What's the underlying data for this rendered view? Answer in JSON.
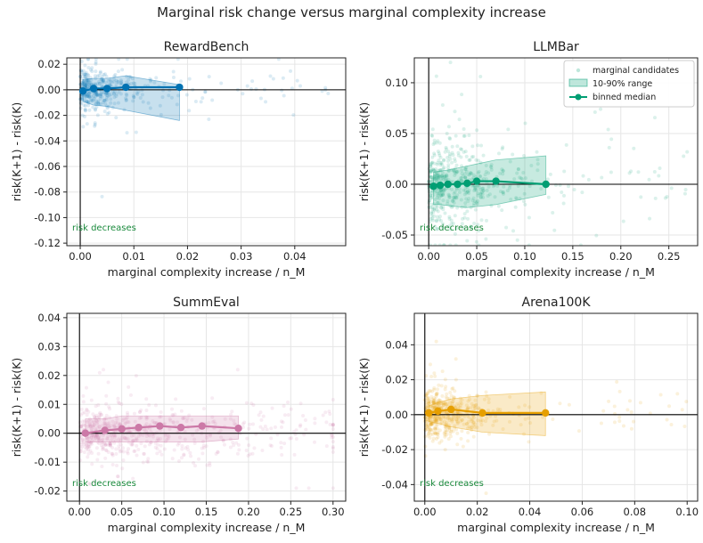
{
  "figure_title": "Marginal risk change versus marginal complexity increase",
  "chart_data": [
    {
      "type": "scatter",
      "title": "RewardBench",
      "xlabel": "marginal complexity increase / n_M",
      "ylabel": "risk(K+1) - risk(K)",
      "xlim": [
        -0.0025,
        0.0495
      ],
      "ylim": [
        -0.122,
        0.025
      ],
      "xticks": [
        0.0,
        0.01,
        0.02,
        0.03,
        0.04
      ],
      "xtick_labels": [
        "0.00",
        "0.01",
        "0.02",
        "0.03",
        "0.04"
      ],
      "yticks": [
        -0.12,
        -0.1,
        -0.08,
        -0.06,
        -0.04,
        -0.02,
        0.0,
        0.02
      ],
      "ytick_labels": [
        "-0.12",
        "-0.10",
        "-0.08",
        "-0.06",
        "-0.04",
        "-0.02",
        "0.00",
        "0.02"
      ],
      "color": "#0072B2",
      "annotation": "risk decreases",
      "grid": true,
      "scatter": {
        "x_range": [
          0.0,
          0.047
        ],
        "x_concentration": 0.004,
        "y_scale": 0.007,
        "y_clip": [
          -0.118,
          0.024
        ],
        "count": 420,
        "seed": 11
      },
      "band": {
        "x": [
          0.0005,
          0.0025,
          0.005,
          0.0085,
          0.0185
        ],
        "y_low": [
          -0.009,
          -0.012,
          -0.013,
          -0.016,
          -0.024
        ],
        "y_high": [
          0.008,
          0.009,
          0.009,
          0.011,
          0.004
        ]
      },
      "median": {
        "x": [
          0.0005,
          0.0025,
          0.005,
          0.0085,
          0.0185
        ],
        "y": [
          -0.001,
          0.001,
          0.001,
          0.002,
          0.002
        ]
      }
    },
    {
      "type": "scatter",
      "title": "LLMBar",
      "xlabel": "marginal complexity increase / n_M",
      "ylabel": "risk(K+1) - risk(K)",
      "xlim": [
        -0.015,
        0.28
      ],
      "ylim": [
        -0.0605,
        0.1245
      ],
      "xticks": [
        0.0,
        0.05,
        0.1,
        0.15,
        0.2,
        0.25
      ],
      "xtick_labels": [
        "0.00",
        "0.05",
        "0.10",
        "0.15",
        "0.20",
        "0.25"
      ],
      "yticks": [
        -0.05,
        0.0,
        0.05,
        0.1
      ],
      "ytick_labels": [
        "-0.05",
        "0.00",
        "0.05",
        "0.10"
      ],
      "color": "#009E73",
      "annotation": "risk decreases",
      "grid": true,
      "legend": {
        "position": "top-right",
        "entries": [
          "marginal candidates",
          "10-90% range",
          "binned median"
        ]
      },
      "scatter": {
        "x_range": [
          0.0,
          0.27
        ],
        "x_concentration": 0.035,
        "y_scale": 0.017,
        "y_clip": [
          -0.06,
          0.12
        ],
        "count": 560,
        "seed": 23
      },
      "band": {
        "x": [
          0.005,
          0.012,
          0.02,
          0.03,
          0.04,
          0.05,
          0.07,
          0.122
        ],
        "y_low": [
          -0.02,
          -0.02,
          -0.021,
          -0.022,
          -0.023,
          -0.022,
          -0.02,
          -0.01
        ],
        "y_high": [
          0.012,
          0.013,
          0.014,
          0.016,
          0.018,
          0.02,
          0.024,
          0.028
        ]
      },
      "median": {
        "x": [
          0.005,
          0.012,
          0.02,
          0.03,
          0.04,
          0.05,
          0.07,
          0.122
        ],
        "y": [
          -0.002,
          -0.001,
          0.0,
          0.0,
          0.001,
          0.003,
          0.003,
          0.0
        ]
      }
    },
    {
      "type": "scatter",
      "title": "SummEval",
      "xlabel": "marginal complexity increase / n_M",
      "ylabel": "risk(K+1) - risk(K)",
      "xlim": [
        -0.015,
        0.315
      ],
      "ylim": [
        -0.0235,
        0.0415
      ],
      "xticks": [
        0.0,
        0.05,
        0.1,
        0.15,
        0.2,
        0.25,
        0.3
      ],
      "xtick_labels": [
        "0.00",
        "0.05",
        "0.10",
        "0.15",
        "0.20",
        "0.25",
        "0.30"
      ],
      "yticks": [
        -0.02,
        -0.01,
        0.0,
        0.01,
        0.02,
        0.03,
        0.04
      ],
      "ytick_labels": [
        "-0.02",
        "-0.01",
        "0.00",
        "0.01",
        "0.02",
        "0.03",
        "0.04"
      ],
      "color": "#CC79A7",
      "annotation": "risk decreases",
      "grid": true,
      "scatter": {
        "x_range": [
          0.0,
          0.3
        ],
        "x_concentration": 0.08,
        "y_scale": 0.004,
        "y_clip": [
          -0.019,
          0.022
        ],
        "count": 620,
        "seed": 37
      },
      "band": {
        "x": [
          0.007,
          0.03,
          0.05,
          0.07,
          0.095,
          0.12,
          0.145,
          0.188
        ],
        "y_low": [
          -0.003,
          -0.003,
          -0.003,
          -0.003,
          -0.003,
          -0.003,
          -0.003,
          -0.002
        ],
        "y_high": [
          0.005,
          0.005,
          0.006,
          0.006,
          0.006,
          0.006,
          0.006,
          0.006
        ]
      },
      "median": {
        "x": [
          0.007,
          0.03,
          0.05,
          0.07,
          0.095,
          0.12,
          0.145,
          0.188
        ],
        "y": [
          0.0,
          0.001,
          0.0015,
          0.002,
          0.0025,
          0.002,
          0.0025,
          0.0017
        ]
      }
    },
    {
      "type": "scatter",
      "title": "Arena100K",
      "xlabel": "marginal complexity increase / n_M",
      "ylabel": "risk(K+1) - risk(K)",
      "xlim": [
        -0.004,
        0.104
      ],
      "ylim": [
        -0.0495,
        0.058
      ],
      "xticks": [
        0.0,
        0.02,
        0.04,
        0.06,
        0.08,
        0.1
      ],
      "xtick_labels": [
        "0.00",
        "0.02",
        "0.04",
        "0.06",
        "0.08",
        "0.10"
      ],
      "yticks": [
        -0.04,
        -0.02,
        0.0,
        0.02,
        0.04
      ],
      "ytick_labels": [
        "-0.04",
        "-0.02",
        "0.00",
        "0.02",
        "0.04"
      ],
      "color": "#E69F00",
      "annotation": "risk decreases",
      "grid": true,
      "scatter": {
        "x_range": [
          0.0,
          0.1
        ],
        "x_concentration": 0.009,
        "y_scale": 0.006,
        "y_clip": [
          -0.045,
          0.055
        ],
        "count": 520,
        "seed": 53
      },
      "band": {
        "x": [
          0.0015,
          0.005,
          0.01,
          0.022,
          0.046
        ],
        "y_low": [
          -0.004,
          -0.005,
          -0.007,
          -0.01,
          -0.012
        ],
        "y_high": [
          0.005,
          0.007,
          0.009,
          0.011,
          0.013
        ]
      },
      "median": {
        "x": [
          0.0015,
          0.005,
          0.01,
          0.022,
          0.046
        ],
        "y": [
          0.001,
          0.002,
          0.003,
          0.001,
          0.001
        ]
      }
    }
  ]
}
